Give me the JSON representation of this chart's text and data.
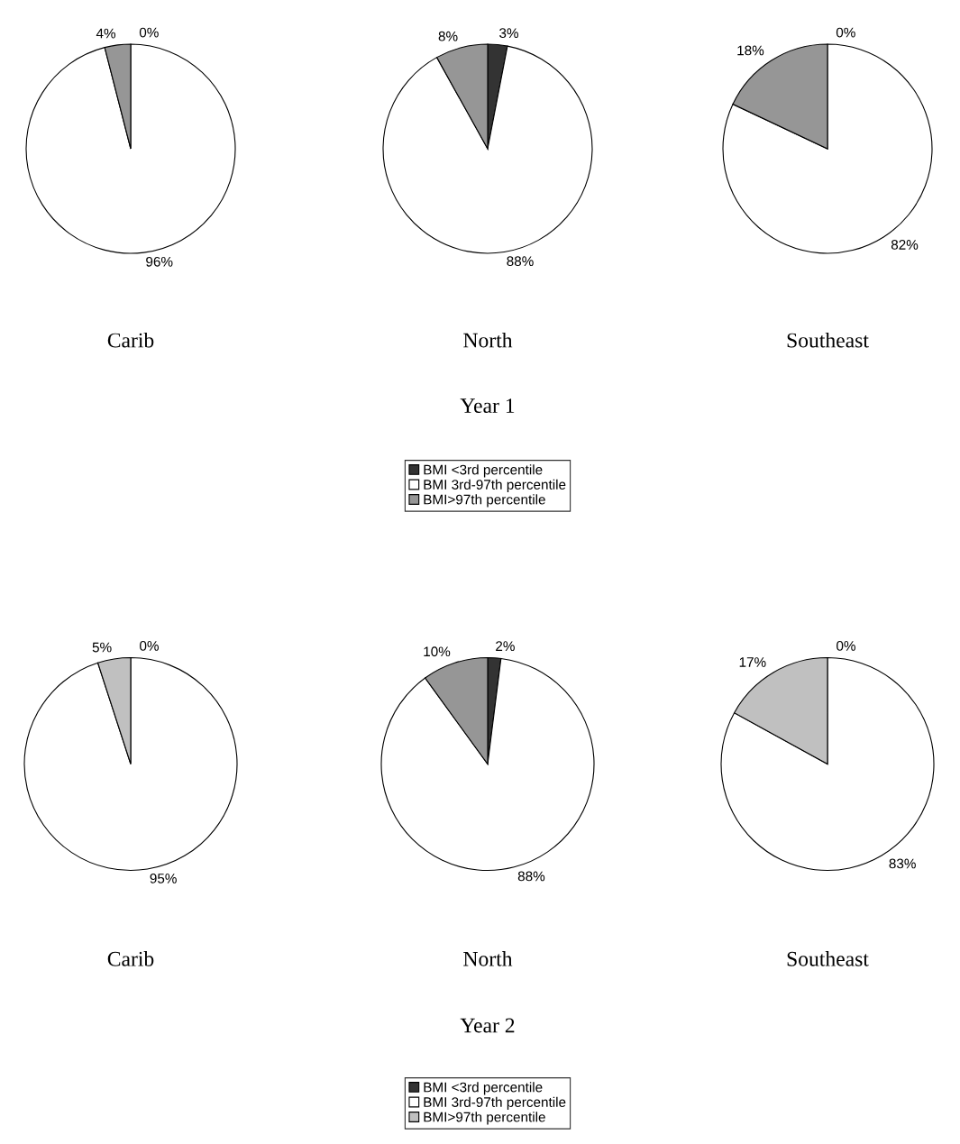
{
  "chart_data": [
    {
      "type": "pie",
      "title": "Carib",
      "categories": [
        "BMI <3rd percentile",
        "BMI 3rd-97th percentile",
        "BMI>97th percentile"
      ],
      "values": [
        0,
        96,
        4
      ],
      "value_labels": [
        "0%",
        "96%",
        "4%"
      ],
      "colors": [
        "#333333",
        "#ffffff",
        "#969696"
      ],
      "legend": "bottom"
    },
    {
      "type": "pie",
      "title": "North",
      "categories": [
        null,
        null,
        null
      ],
      "values": [
        3,
        88,
        8
      ],
      "value_labels": [
        "3%",
        "88%",
        "8%"
      ],
      "colors": [
        "#333333",
        "#ffffff",
        "#969696"
      ],
      "annotations": [
        "Year 1"
      ]
    },
    {
      "type": "pie",
      "title": "Southeast",
      "categories": [
        null,
        null,
        null
      ],
      "values": [
        0,
        82,
        18
      ],
      "value_labels": [
        "0%",
        "82%",
        "18%"
      ],
      "colors": [
        "#333333",
        "#ffffff",
        "#969696"
      ]
    },
    {
      "type": "pie",
      "title": "Carib",
      "categories": [
        "BMI <3rd percentile",
        "BMI 3rd-97th percentile",
        "BMI>97th percentile"
      ],
      "values": [
        0,
        95,
        5
      ],
      "value_labels": [
        "0%",
        "95%",
        "5%"
      ],
      "colors": [
        "#333333",
        "#ffffff",
        "#c0c0c0"
      ],
      "legend": "bottom"
    },
    {
      "type": "pie",
      "title": "North",
      "categories": [
        null,
        null,
        null
      ],
      "values": [
        2,
        88,
        10
      ],
      "value_labels": [
        "2%",
        "88%",
        "10%"
      ],
      "colors": [
        "#333333",
        "#ffffff",
        "#969696"
      ],
      "annotations": [
        "Year 2"
      ]
    },
    {
      "type": "pie",
      "title": "Southeast",
      "categories": [
        null,
        null,
        null
      ],
      "values": [
        0,
        83,
        17
      ],
      "value_labels": [
        "0%",
        "83%",
        "17%"
      ],
      "colors": [
        "#333333",
        "#ffffff",
        "#c0c0c0"
      ]
    }
  ]
}
